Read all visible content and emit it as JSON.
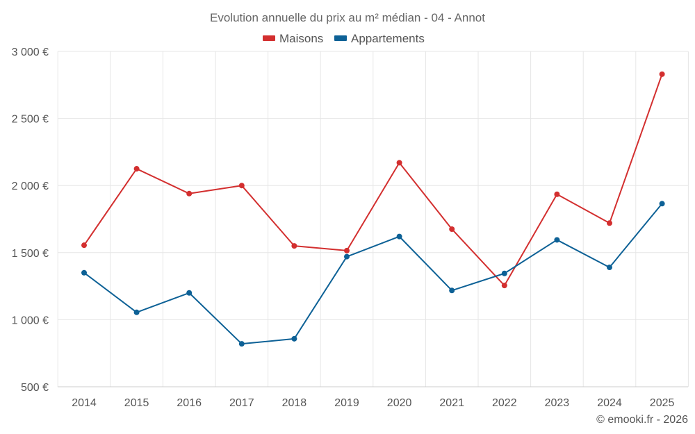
{
  "chart_data": {
    "type": "line",
    "title": "Evolution annuelle du prix au m² médian - 04 - Annot",
    "categories": [
      "2014",
      "2015",
      "2016",
      "2017",
      "2018",
      "2019",
      "2020",
      "2021",
      "2022",
      "2023",
      "2024",
      "2025"
    ],
    "series": [
      {
        "name": "Maisons",
        "color": "#d32f2f",
        "values": [
          1555,
          2125,
          1940,
          2000,
          1550,
          1515,
          2170,
          1675,
          1255,
          1935,
          1720,
          2830
        ]
      },
      {
        "name": "Appartements",
        "color": "#0d6196",
        "values": [
          1350,
          1055,
          1200,
          820,
          858,
          1470,
          1620,
          1218,
          1345,
          1595,
          1390,
          1865
        ]
      }
    ],
    "y_ticks": [
      "500 €",
      "1 000 €",
      "1 500 €",
      "2 000 €",
      "2 500 €",
      "3 000 €"
    ],
    "y_tick_values": [
      500,
      1000,
      1500,
      2000,
      2500,
      3000
    ],
    "ylim": [
      500,
      3000
    ],
    "xlabel": "",
    "ylabel": "",
    "grid": true,
    "legend_position": "top-center",
    "credit": "© emooki.fr - 2026"
  }
}
